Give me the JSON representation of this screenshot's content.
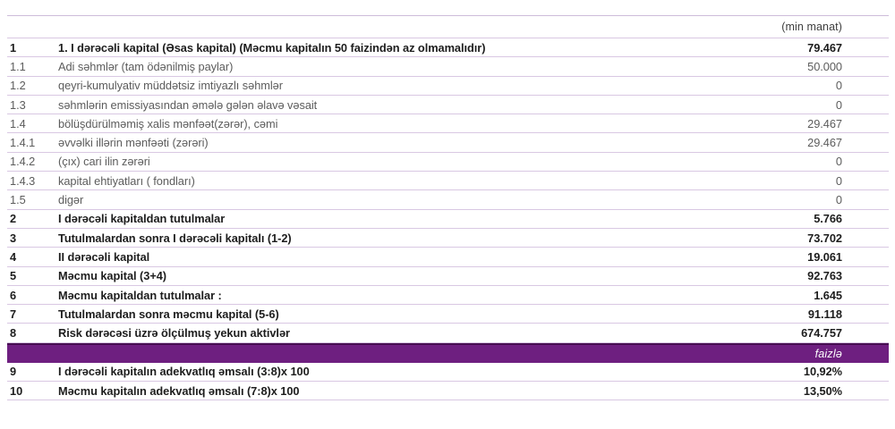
{
  "header": {
    "unit_label": "(min manat)"
  },
  "band": {
    "label": "faizlə"
  },
  "colors": {
    "band_fill": "#6e1f80",
    "band_top_border": "#470e52",
    "separator": "#d9c8e3",
    "bold_text": "#1d1d1d",
    "regular_text": "#5c5c5c"
  },
  "rows": [
    {
      "no": "1",
      "label": "1. I dərəcəli kapital (Əsas kapital) (Məcmu kapitalın 50 faizindən az olmamalıdır)",
      "value": "79.467"
    },
    {
      "no": "1.1",
      "label": "Adi səhmlər (tam ödənilmiş paylar)",
      "value": "50.000"
    },
    {
      "no": "1.2",
      "label": "qeyri-kumulyativ müddətsiz imtiyazlı səhmlər",
      "value": "0"
    },
    {
      "no": "1.3",
      "label": "səhmlərin emissiyasından əmələ gələn əlavə vəsait",
      "value": "0"
    },
    {
      "no": "1.4",
      "label": "bölüşdürülməmiş xalis mənfəət(zərər), cəmi",
      "value": "29.467"
    },
    {
      "no": "1.4.1",
      "label": "əvvəlki illərin mənfəəti (zərəri)",
      "value": "29.467"
    },
    {
      "no": "1.4.2",
      "label": "(çıx) cari ilin zərəri",
      "value": "0"
    },
    {
      "no": "1.4.3",
      "label": "kapital ehtiyatları ( fondları)",
      "value": "0"
    },
    {
      "no": "1.5",
      "label": "digər",
      "value": "0"
    },
    {
      "no": "2",
      "label": "I dərəcəli kapitaldan tutulmalar",
      "value": "5.766"
    },
    {
      "no": "3",
      "label": "Tutulmalardan sonra I dərəcəli kapitalı (1-2)",
      "value": "73.702"
    },
    {
      "no": "4",
      "label": "II dərəcəli kapital",
      "value": "19.061"
    },
    {
      "no": "5",
      "label": "Məcmu kapital (3+4)",
      "value": "92.763"
    },
    {
      "no": "6",
      "label": "Məcmu kapitaldan tutulmalar :",
      "value": "1.645"
    },
    {
      "no": "7",
      "label": "Tutulmalardan sonra məcmu kapital (5-6)",
      "value": "91.118"
    },
    {
      "no": "8",
      "label": "Risk dərəcəsi üzrə ölçülmuş yekun aktivlər",
      "value": "674.757"
    },
    {
      "no": "9",
      "label": "I dərəcəli kapitalın adekvatlıq əmsalı (3:8)x 100",
      "value": "10,92%"
    },
    {
      "no": "10",
      "label": "Məcmu kapitalın adekvatlıq əmsalı (7:8)x 100",
      "value": "13,50%"
    }
  ]
}
